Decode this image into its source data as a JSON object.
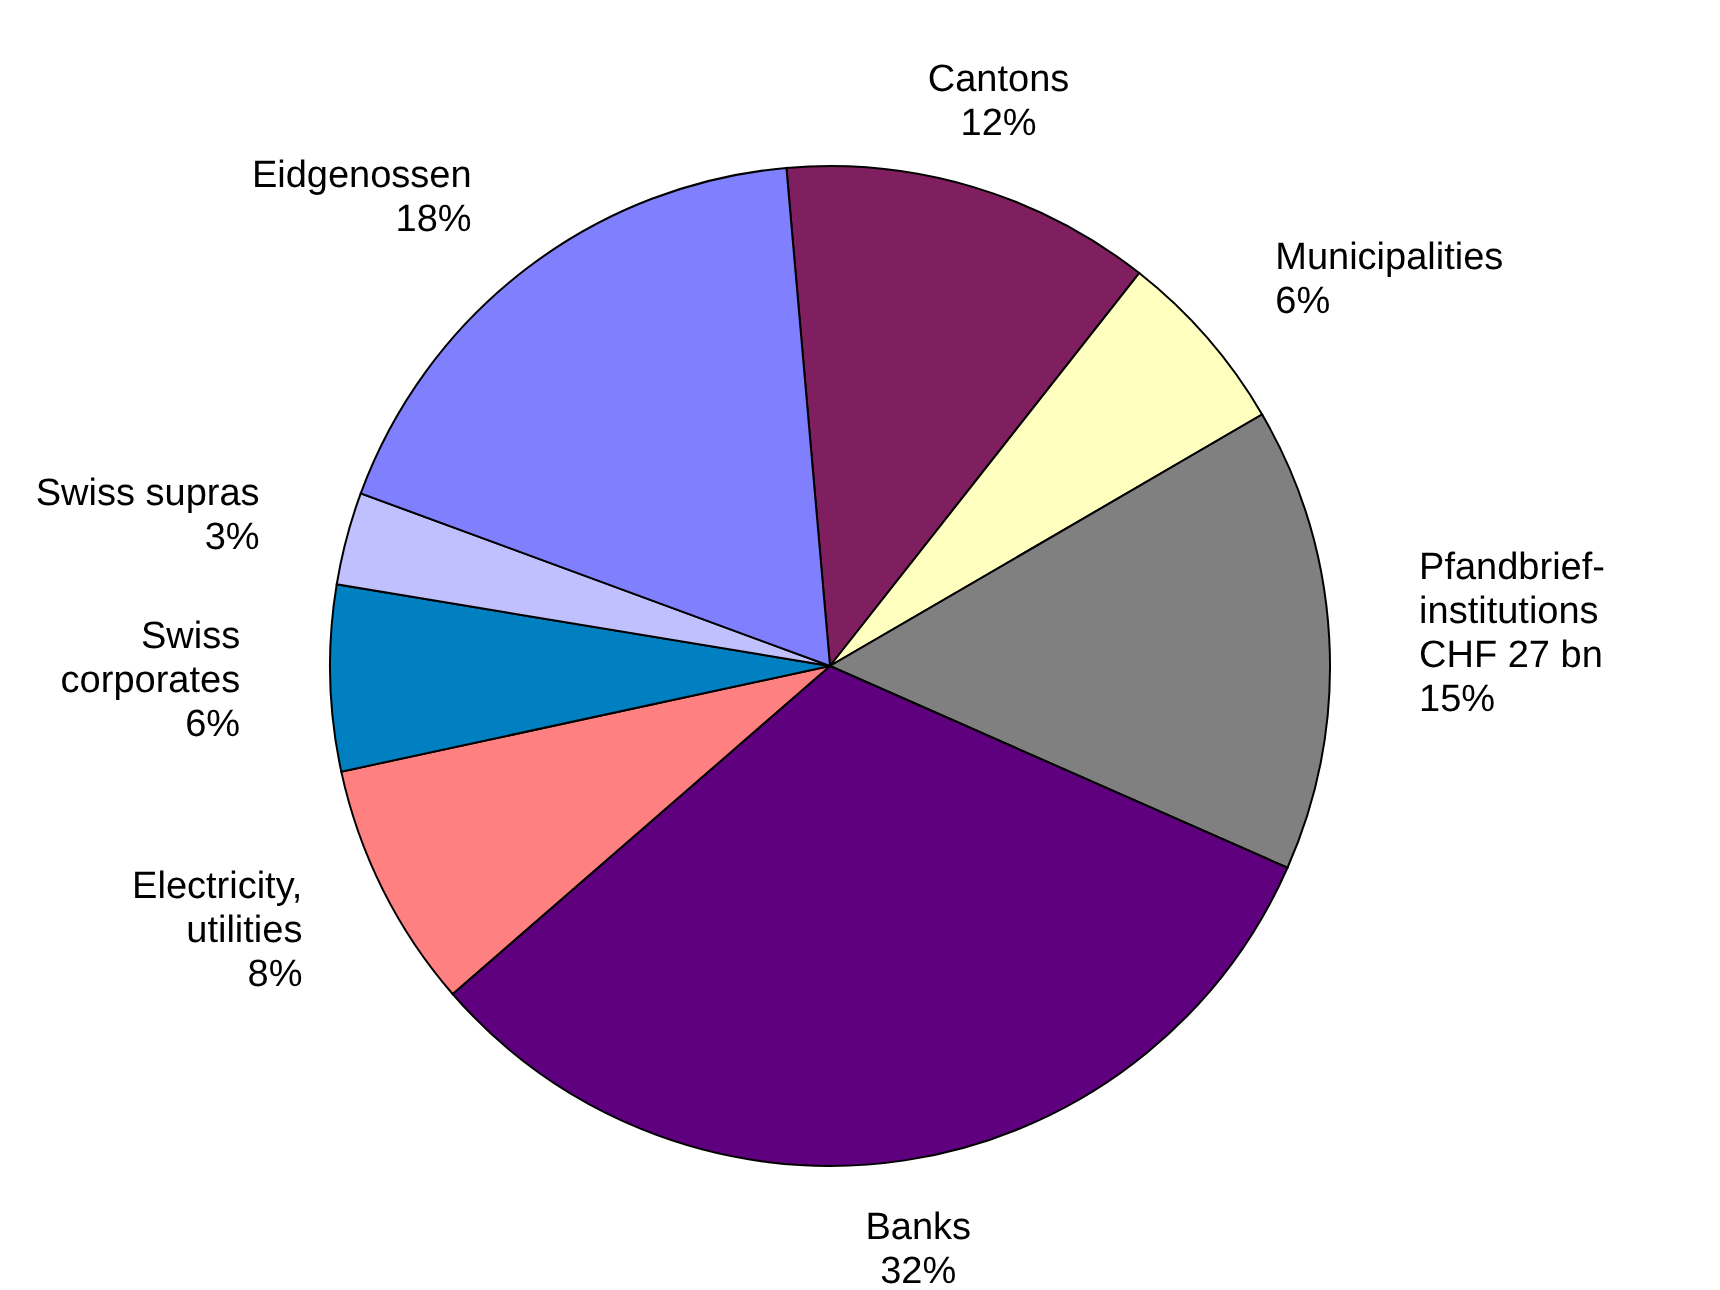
{
  "chart_data": {
    "type": "pie",
    "categories": [
      "Cantons",
      "Municipalities",
      "Pfandbrief-\ninstitutions\nCHF 27 bn",
      "Banks",
      "Electricity,\nutilities",
      "Swiss\ncorporates",
      "Swiss supras",
      "Eidgenossen"
    ],
    "values": [
      12,
      6,
      15,
      32,
      8,
      6,
      3,
      18
    ],
    "colors": [
      "#7f1f5f",
      "#ffffc0",
      "#808080",
      "#5f007f",
      "#ff8080",
      "#0080c0",
      "#c0c0ff",
      "#8080ff"
    ],
    "value_labels": [
      "12%",
      "6%",
      "15%",
      "32%",
      "8%",
      "6%",
      "3%",
      "18%"
    ]
  }
}
